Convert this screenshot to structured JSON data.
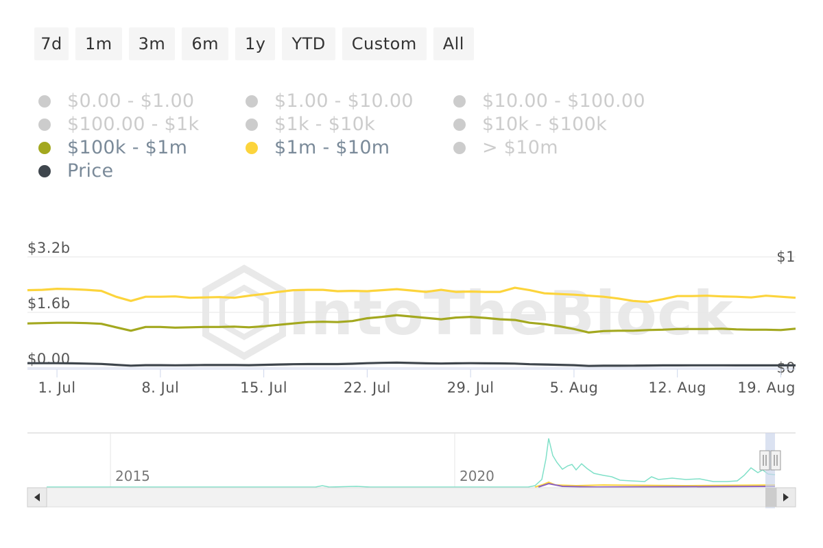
{
  "range_selector": {
    "buttons": [
      "7d",
      "1m",
      "3m",
      "6m",
      "1y",
      "YTD",
      "Custom",
      "All"
    ]
  },
  "legend": {
    "items": [
      {
        "label": "$0.00 - $1.00",
        "color": "#cccccc",
        "visible": false
      },
      {
        "label": "$1.00 - $10.00",
        "color": "#cccccc",
        "visible": false
      },
      {
        "label": "$10.00 - $100.00",
        "color": "#cccccc",
        "visible": false
      },
      {
        "label": "$100.00 - $1k",
        "color": "#cccccc",
        "visible": false
      },
      {
        "label": "$1k - $10k",
        "color": "#cccccc",
        "visible": false
      },
      {
        "label": "$10k - $100k",
        "color": "#cccccc",
        "visible": false
      },
      {
        "label": "$100k - $1m",
        "color": "#a3a81f",
        "visible": true
      },
      {
        "label": "$1m - $10m",
        "color": "#fcd43c",
        "visible": true
      },
      {
        "label": "> $10m",
        "color": "#cccccc",
        "visible": false
      },
      {
        "label": "Price",
        "color": "#3f464d",
        "visible": true
      }
    ]
  },
  "watermark": "IntoTheBlock",
  "chart_data": {
    "type": "line",
    "x": [
      "2023-06-29",
      "2023-06-30",
      "2023-07-01",
      "2023-07-02",
      "2023-07-03",
      "2023-07-04",
      "2023-07-05",
      "2023-07-06",
      "2023-07-07",
      "2023-07-08",
      "2023-07-09",
      "2023-07-10",
      "2023-07-11",
      "2023-07-12",
      "2023-07-13",
      "2023-07-14",
      "2023-07-15",
      "2023-07-16",
      "2023-07-17",
      "2023-07-18",
      "2023-07-19",
      "2023-07-20",
      "2023-07-21",
      "2023-07-22",
      "2023-07-23",
      "2023-07-24",
      "2023-07-25",
      "2023-07-26",
      "2023-07-27",
      "2023-07-28",
      "2023-07-29",
      "2023-07-30",
      "2023-07-31",
      "2023-08-01",
      "2023-08-02",
      "2023-08-03",
      "2023-08-04",
      "2023-08-05",
      "2023-08-06",
      "2023-08-07",
      "2023-08-08",
      "2023-08-09",
      "2023-08-10",
      "2023-08-11",
      "2023-08-12",
      "2023-08-13",
      "2023-08-14",
      "2023-08-15",
      "2023-08-16",
      "2023-08-17",
      "2023-08-18",
      "2023-08-19",
      "2023-08-20"
    ],
    "x_ticks": [
      "1. Jul",
      "8. Jul",
      "15. Jul",
      "22. Jul",
      "29. Jul",
      "5. Aug",
      "12. Aug",
      "19. Aug"
    ],
    "y_left_ticks": [
      "$0.00",
      "$1.6b",
      "$3.2b"
    ],
    "y_left_range": [
      0,
      3.2
    ],
    "y_right_ticks": [
      "$0",
      "$1"
    ],
    "y_right_range": [
      0,
      1
    ],
    "series": [
      {
        "name": "$1m - $10m",
        "color": "#fcd43c",
        "axis": "left",
        "values": [
          2.24,
          2.25,
          2.28,
          2.27,
          2.25,
          2.22,
          2.05,
          1.93,
          2.05,
          2.05,
          2.06,
          2.02,
          2.03,
          2.04,
          2.02,
          2.08,
          2.13,
          2.19,
          2.24,
          2.25,
          2.25,
          2.21,
          2.22,
          2.21,
          2.24,
          2.27,
          2.23,
          2.19,
          2.25,
          2.19,
          2.2,
          2.19,
          2.19,
          2.31,
          2.24,
          2.15,
          2.13,
          2.11,
          2.08,
          2.05,
          2.0,
          1.93,
          1.9,
          1.98,
          2.07,
          2.07,
          2.08,
          2.06,
          2.05,
          2.03,
          2.08,
          2.05,
          2.02
        ]
      },
      {
        "name": "$100k - $1m",
        "color": "#a3a81f",
        "axis": "left",
        "values": [
          1.28,
          1.29,
          1.3,
          1.3,
          1.29,
          1.27,
          1.17,
          1.07,
          1.18,
          1.18,
          1.16,
          1.17,
          1.18,
          1.18,
          1.19,
          1.17,
          1.2,
          1.24,
          1.28,
          1.32,
          1.33,
          1.32,
          1.35,
          1.43,
          1.47,
          1.52,
          1.48,
          1.44,
          1.4,
          1.45,
          1.47,
          1.44,
          1.4,
          1.38,
          1.3,
          1.26,
          1.2,
          1.12,
          1.02,
          1.06,
          1.07,
          1.07,
          1.09,
          1.1,
          1.12,
          1.12,
          1.12,
          1.13,
          1.11,
          1.1,
          1.1,
          1.09,
          1.13
        ]
      },
      {
        "name": "Price",
        "color": "#3f464d",
        "axis": "right",
        "values": [
          0.042,
          0.042,
          0.042,
          0.041,
          0.038,
          0.035,
          0.027,
          0.02,
          0.024,
          0.024,
          0.023,
          0.024,
          0.025,
          0.025,
          0.025,
          0.024,
          0.027,
          0.03,
          0.033,
          0.034,
          0.034,
          0.034,
          0.037,
          0.042,
          0.045,
          0.047,
          0.044,
          0.041,
          0.039,
          0.041,
          0.042,
          0.041,
          0.04,
          0.038,
          0.033,
          0.03,
          0.027,
          0.024,
          0.017,
          0.019,
          0.019,
          0.02,
          0.021,
          0.022,
          0.022,
          0.023,
          0.023,
          0.023,
          0.022,
          0.022,
          0.022,
          0.022,
          0.022
        ]
      }
    ],
    "grid": true,
    "legend_position": "top-left"
  },
  "navigator": {
    "year_labels": [
      "2015",
      "2020"
    ]
  }
}
